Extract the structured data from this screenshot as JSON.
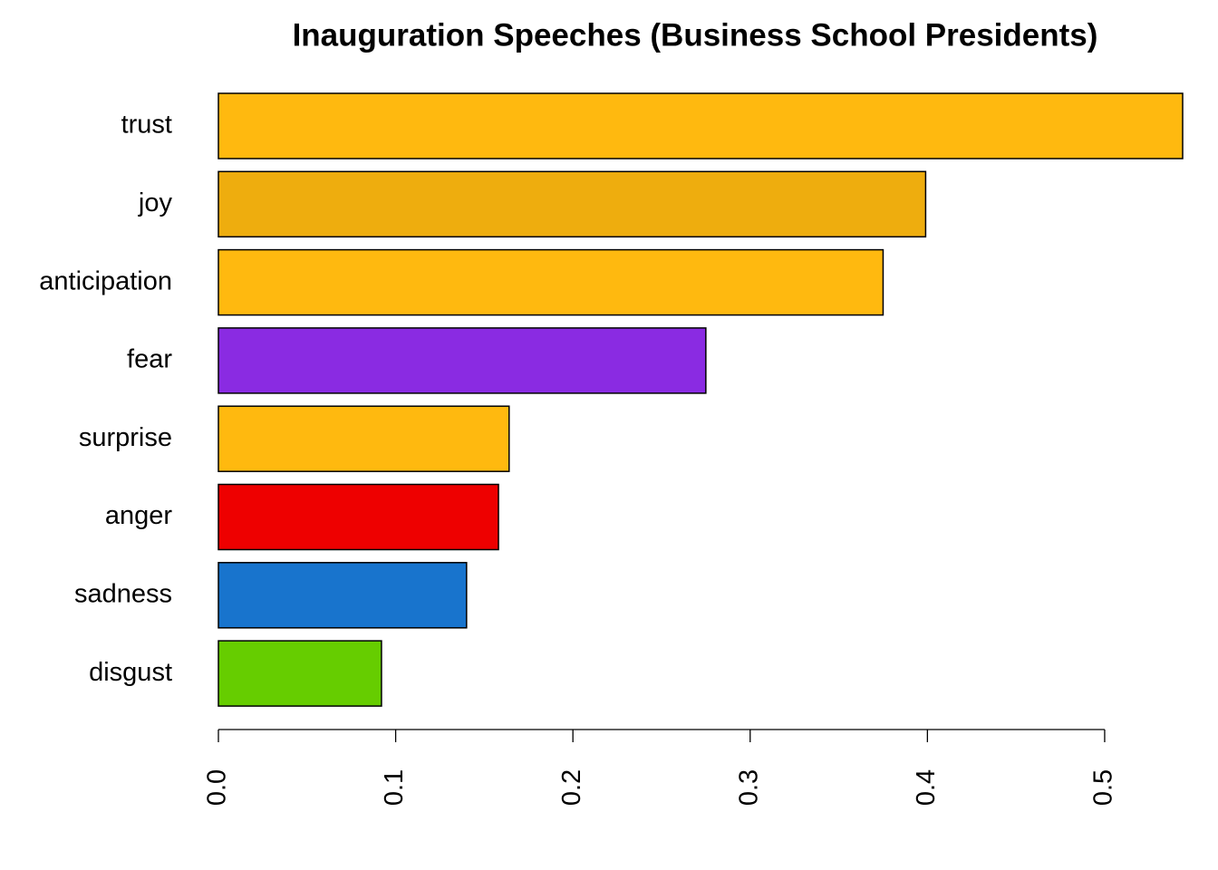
{
  "chart_data": {
    "type": "bar",
    "orientation": "horizontal",
    "title": "Inauguration Speeches (Business School Presidents)",
    "categories": [
      "trust",
      "joy",
      "anticipation",
      "fear",
      "surprise",
      "anger",
      "sadness",
      "disgust"
    ],
    "values": [
      0.544,
      0.399,
      0.375,
      0.275,
      0.164,
      0.158,
      0.14,
      0.092
    ],
    "colors": [
      "#FFB90F",
      "#EEAD0E",
      "#FFB90F",
      "#8A2BE2",
      "#FFB90F",
      "#EE0000",
      "#1874CD",
      "#66CD00"
    ],
    "xlim": [
      0,
      0.544
    ],
    "xticks": [
      {
        "value": 0,
        "label": "0.0"
      },
      0.1,
      0.2,
      0.3,
      0.4,
      0.5
    ]
  }
}
